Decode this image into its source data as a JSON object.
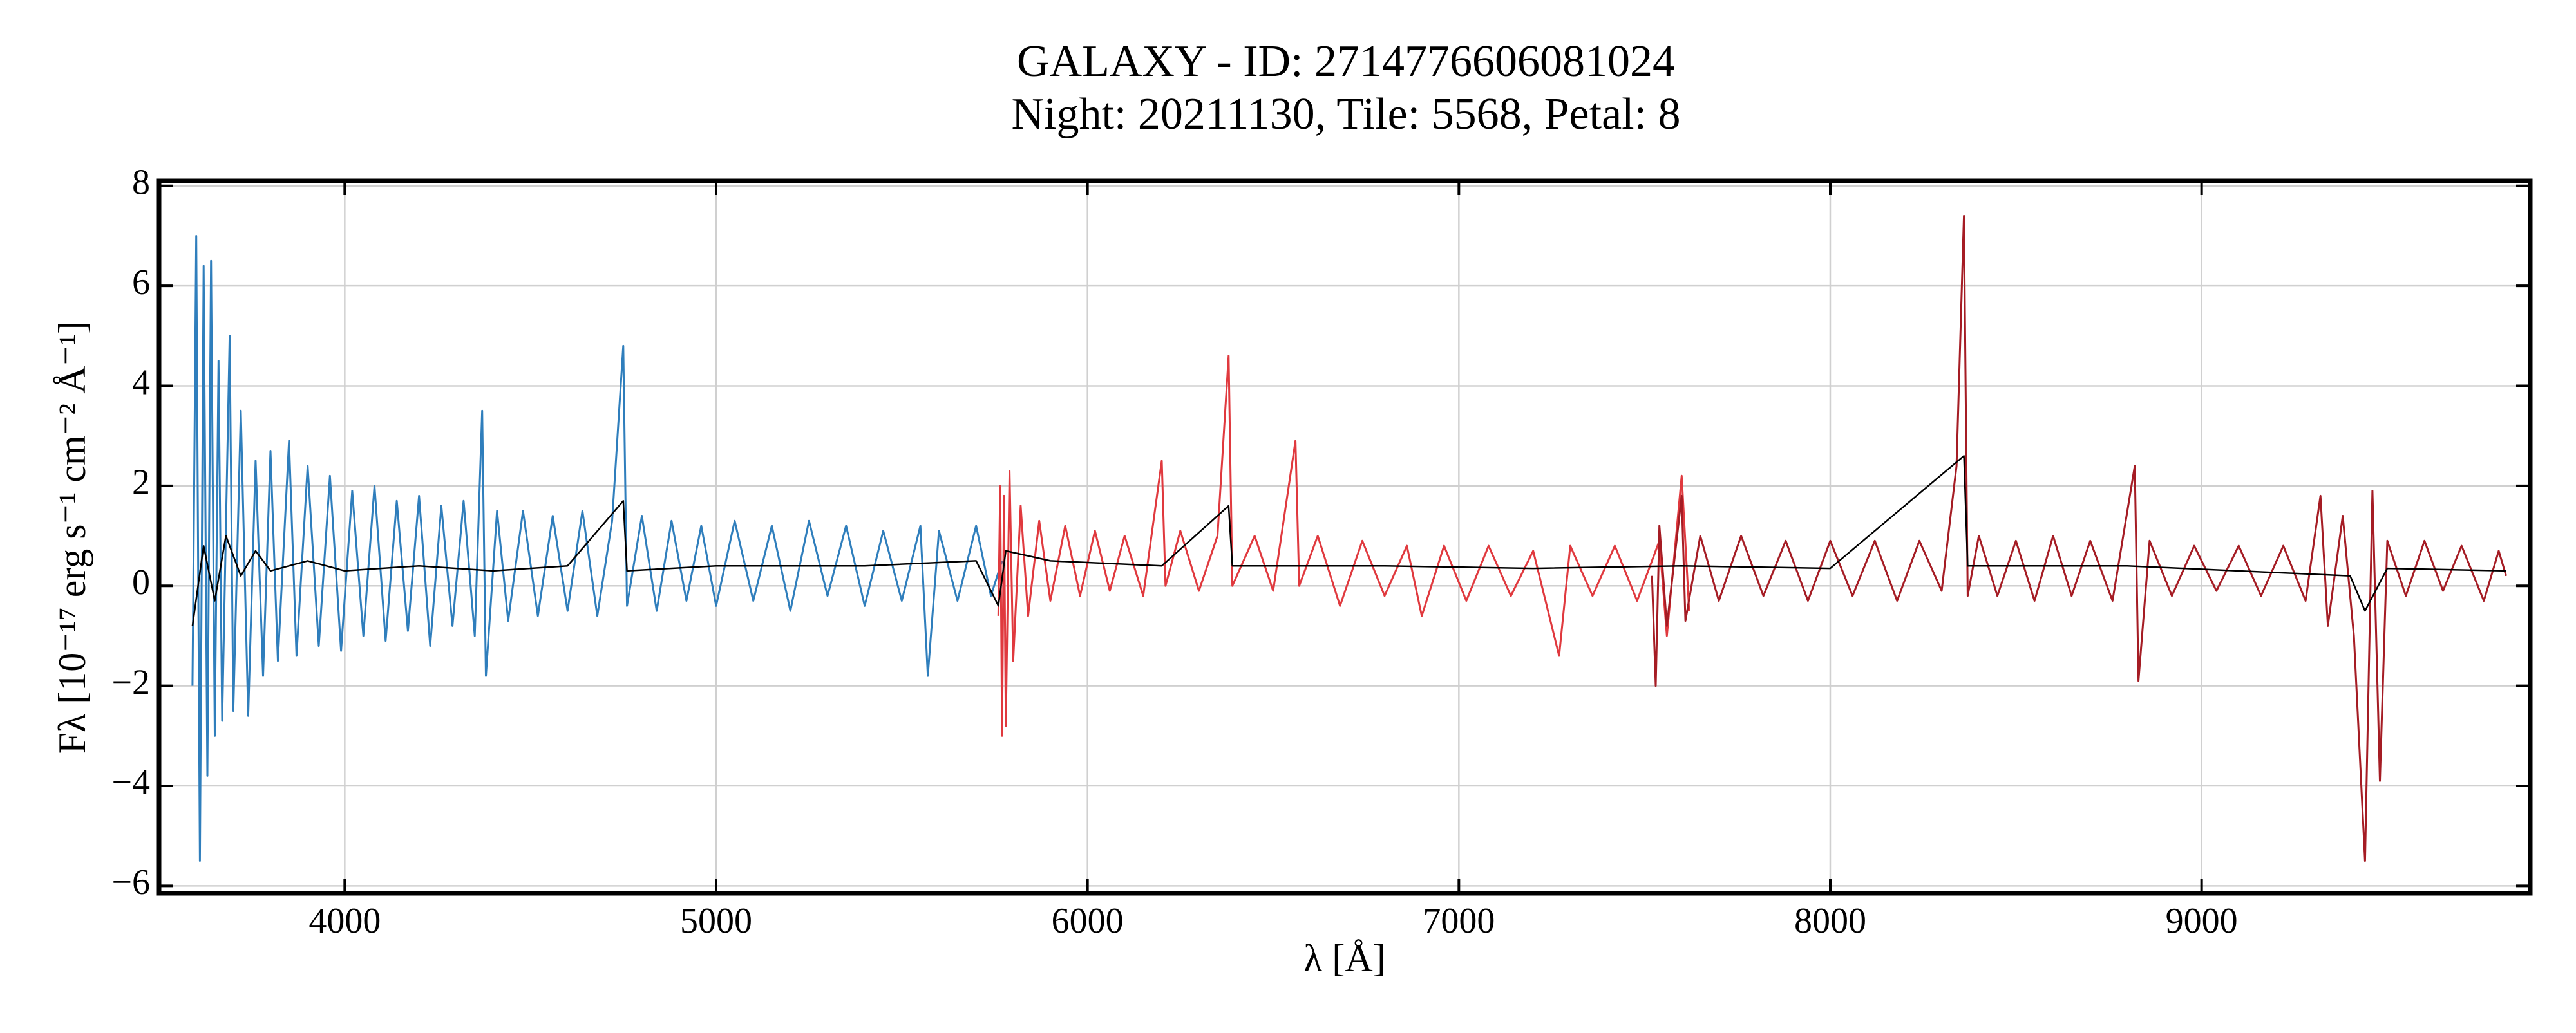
{
  "chart_data": {
    "type": "line",
    "title": [
      "GALAXY - ID: 2714776606081024",
      "Night: 20211130, Tile: 5568, Petal: 8"
    ],
    "xlabel": "λ [Å]",
    "ylabel": "Fλ [10⁻¹⁷ erg s⁻¹ cm⁻² Å⁻¹]",
    "xlim": [
      3500,
      9885
    ],
    "ylim": [
      -6.15,
      8.1
    ],
    "xticks": [
      4000,
      5000,
      6000,
      7000,
      8000,
      9000
    ],
    "yticks": [
      {
        "value": -6,
        "label": "−6"
      },
      {
        "value": -4,
        "label": "−4"
      },
      {
        "value": -2,
        "label": "−2"
      },
      0,
      2,
      4,
      6,
      8
    ],
    "grid": true,
    "series": [
      {
        "color": "#2f7ebc",
        "x": [
          3590,
          3600,
          3610,
          3620,
          3630,
          3640,
          3650,
          3660,
          3670,
          3690,
          3700,
          3720,
          3740,
          3760,
          3780,
          3800,
          3820,
          3850,
          3870,
          3900,
          3930,
          3960,
          3990,
          4020,
          4050,
          4080,
          4110,
          4140,
          4170,
          4200,
          4230,
          4260,
          4290,
          4320,
          4350,
          4370,
          4380,
          4410,
          4440,
          4480,
          4520,
          4560,
          4600,
          4640,
          4680,
          4720,
          4750,
          4760,
          4800,
          4840,
          4880,
          4920,
          4960,
          5000,
          5050,
          5100,
          5150,
          5200,
          5250,
          5300,
          5350,
          5400,
          5450,
          5500,
          5550,
          5570,
          5600,
          5650,
          5700,
          5740,
          5770
        ],
        "values": [
          -2.0,
          7.0,
          -5.5,
          6.4,
          -3.8,
          6.5,
          -3.0,
          4.5,
          -2.7,
          5.0,
          -2.5,
          3.5,
          -2.6,
          2.5,
          -1.8,
          2.7,
          -1.5,
          2.9,
          -1.4,
          2.4,
          -1.2,
          2.2,
          -1.3,
          1.9,
          -1.0,
          2.0,
          -1.1,
          1.7,
          -0.9,
          1.8,
          -1.2,
          1.6,
          -0.8,
          1.7,
          -1.0,
          3.5,
          -1.8,
          1.5,
          -0.7,
          1.5,
          -0.6,
          1.4,
          -0.5,
          1.5,
          -0.6,
          1.3,
          4.8,
          -0.4,
          1.4,
          -0.5,
          1.3,
          -0.3,
          1.2,
          -0.4,
          1.3,
          -0.3,
          1.2,
          -0.5,
          1.3,
          -0.2,
          1.2,
          -0.4,
          1.1,
          -0.3,
          1.2,
          -1.8,
          1.1,
          -0.3,
          1.2,
          -0.2,
          0.5
        ]
      },
      {
        "color": "#e0393e",
        "x": [
          5760,
          5765,
          5770,
          5775,
          5780,
          5790,
          5800,
          5820,
          5840,
          5870,
          5900,
          5940,
          5980,
          6020,
          6060,
          6100,
          6150,
          6200,
          6210,
          6250,
          6300,
          6350,
          6380,
          6390,
          6450,
          6500,
          6560,
          6570,
          6620,
          6680,
          6740,
          6800,
          6860,
          6900,
          6960,
          7020,
          7080,
          7140,
          7200,
          7270,
          7300,
          7360,
          7420,
          7480,
          7540,
          7560,
          7600,
          7620
        ],
        "values": [
          -0.6,
          2.0,
          -3.0,
          1.8,
          -2.8,
          2.3,
          -1.5,
          1.6,
          -0.6,
          1.3,
          -0.3,
          1.2,
          -0.2,
          1.1,
          -0.1,
          1.0,
          -0.2,
          2.5,
          0.0,
          1.1,
          -0.1,
          1.0,
          4.6,
          0.0,
          1.0,
          -0.1,
          2.9,
          0.0,
          1.0,
          -0.4,
          0.9,
          -0.2,
          0.8,
          -0.6,
          0.8,
          -0.3,
          0.8,
          -0.2,
          0.7,
          -1.4,
          0.8,
          -0.2,
          0.8,
          -0.3,
          0.9,
          -1.0,
          2.2,
          -0.5
        ]
      },
      {
        "color": "#a51c24",
        "x": [
          7520,
          7530,
          7540,
          7560,
          7600,
          7610,
          7650,
          7700,
          7760,
          7820,
          7880,
          7940,
          8000,
          8060,
          8120,
          8180,
          8240,
          8300,
          8340,
          8360,
          8370,
          8400,
          8450,
          8500,
          8550,
          8600,
          8650,
          8700,
          8760,
          8820,
          8830,
          8860,
          8920,
          8980,
          9040,
          9100,
          9160,
          9220,
          9280,
          9320,
          9340,
          9380,
          9410,
          9440,
          9460,
          9480,
          9500,
          9550,
          9600,
          9650,
          9700,
          9760,
          9800,
          9820
        ],
        "values": [
          0.2,
          -2.0,
          1.2,
          -0.8,
          1.8,
          -0.7,
          1.0,
          -0.3,
          1.0,
          -0.2,
          0.9,
          -0.3,
          0.9,
          -0.2,
          0.9,
          -0.3,
          0.9,
          -0.1,
          2.4,
          7.4,
          -0.2,
          1.0,
          -0.2,
          0.9,
          -0.3,
          1.0,
          -0.2,
          0.9,
          -0.3,
          2.4,
          -1.9,
          0.9,
          -0.2,
          0.8,
          -0.1,
          0.8,
          -0.2,
          0.8,
          -0.3,
          1.8,
          -0.8,
          1.4,
          -1.0,
          -5.5,
          1.9,
          -3.9,
          0.9,
          -0.2,
          0.9,
          -0.1,
          0.8,
          -0.3,
          0.7,
          0.2
        ]
      },
      {
        "color": "#000000",
        "x": [
          3590,
          3620,
          3650,
          3680,
          3720,
          3760,
          3800,
          3900,
          4000,
          4200,
          4400,
          4600,
          4750,
          4760,
          5000,
          5400,
          5700,
          5760,
          5780,
          5900,
          6200,
          6380,
          6390,
          6800,
          7200,
          7600,
          8000,
          8360,
          8370,
          8800,
          9400,
          9440,
          9500,
          9820
        ],
        "values": [
          -0.8,
          0.8,
          -0.3,
          1.0,
          0.2,
          0.7,
          0.3,
          0.5,
          0.3,
          0.4,
          0.3,
          0.4,
          1.7,
          0.3,
          0.4,
          0.4,
          0.5,
          -0.4,
          0.7,
          0.5,
          0.4,
          1.6,
          0.4,
          0.4,
          0.35,
          0.4,
          0.35,
          2.6,
          0.4,
          0.4,
          0.2,
          -0.5,
          0.35,
          0.3
        ]
      }
    ]
  }
}
